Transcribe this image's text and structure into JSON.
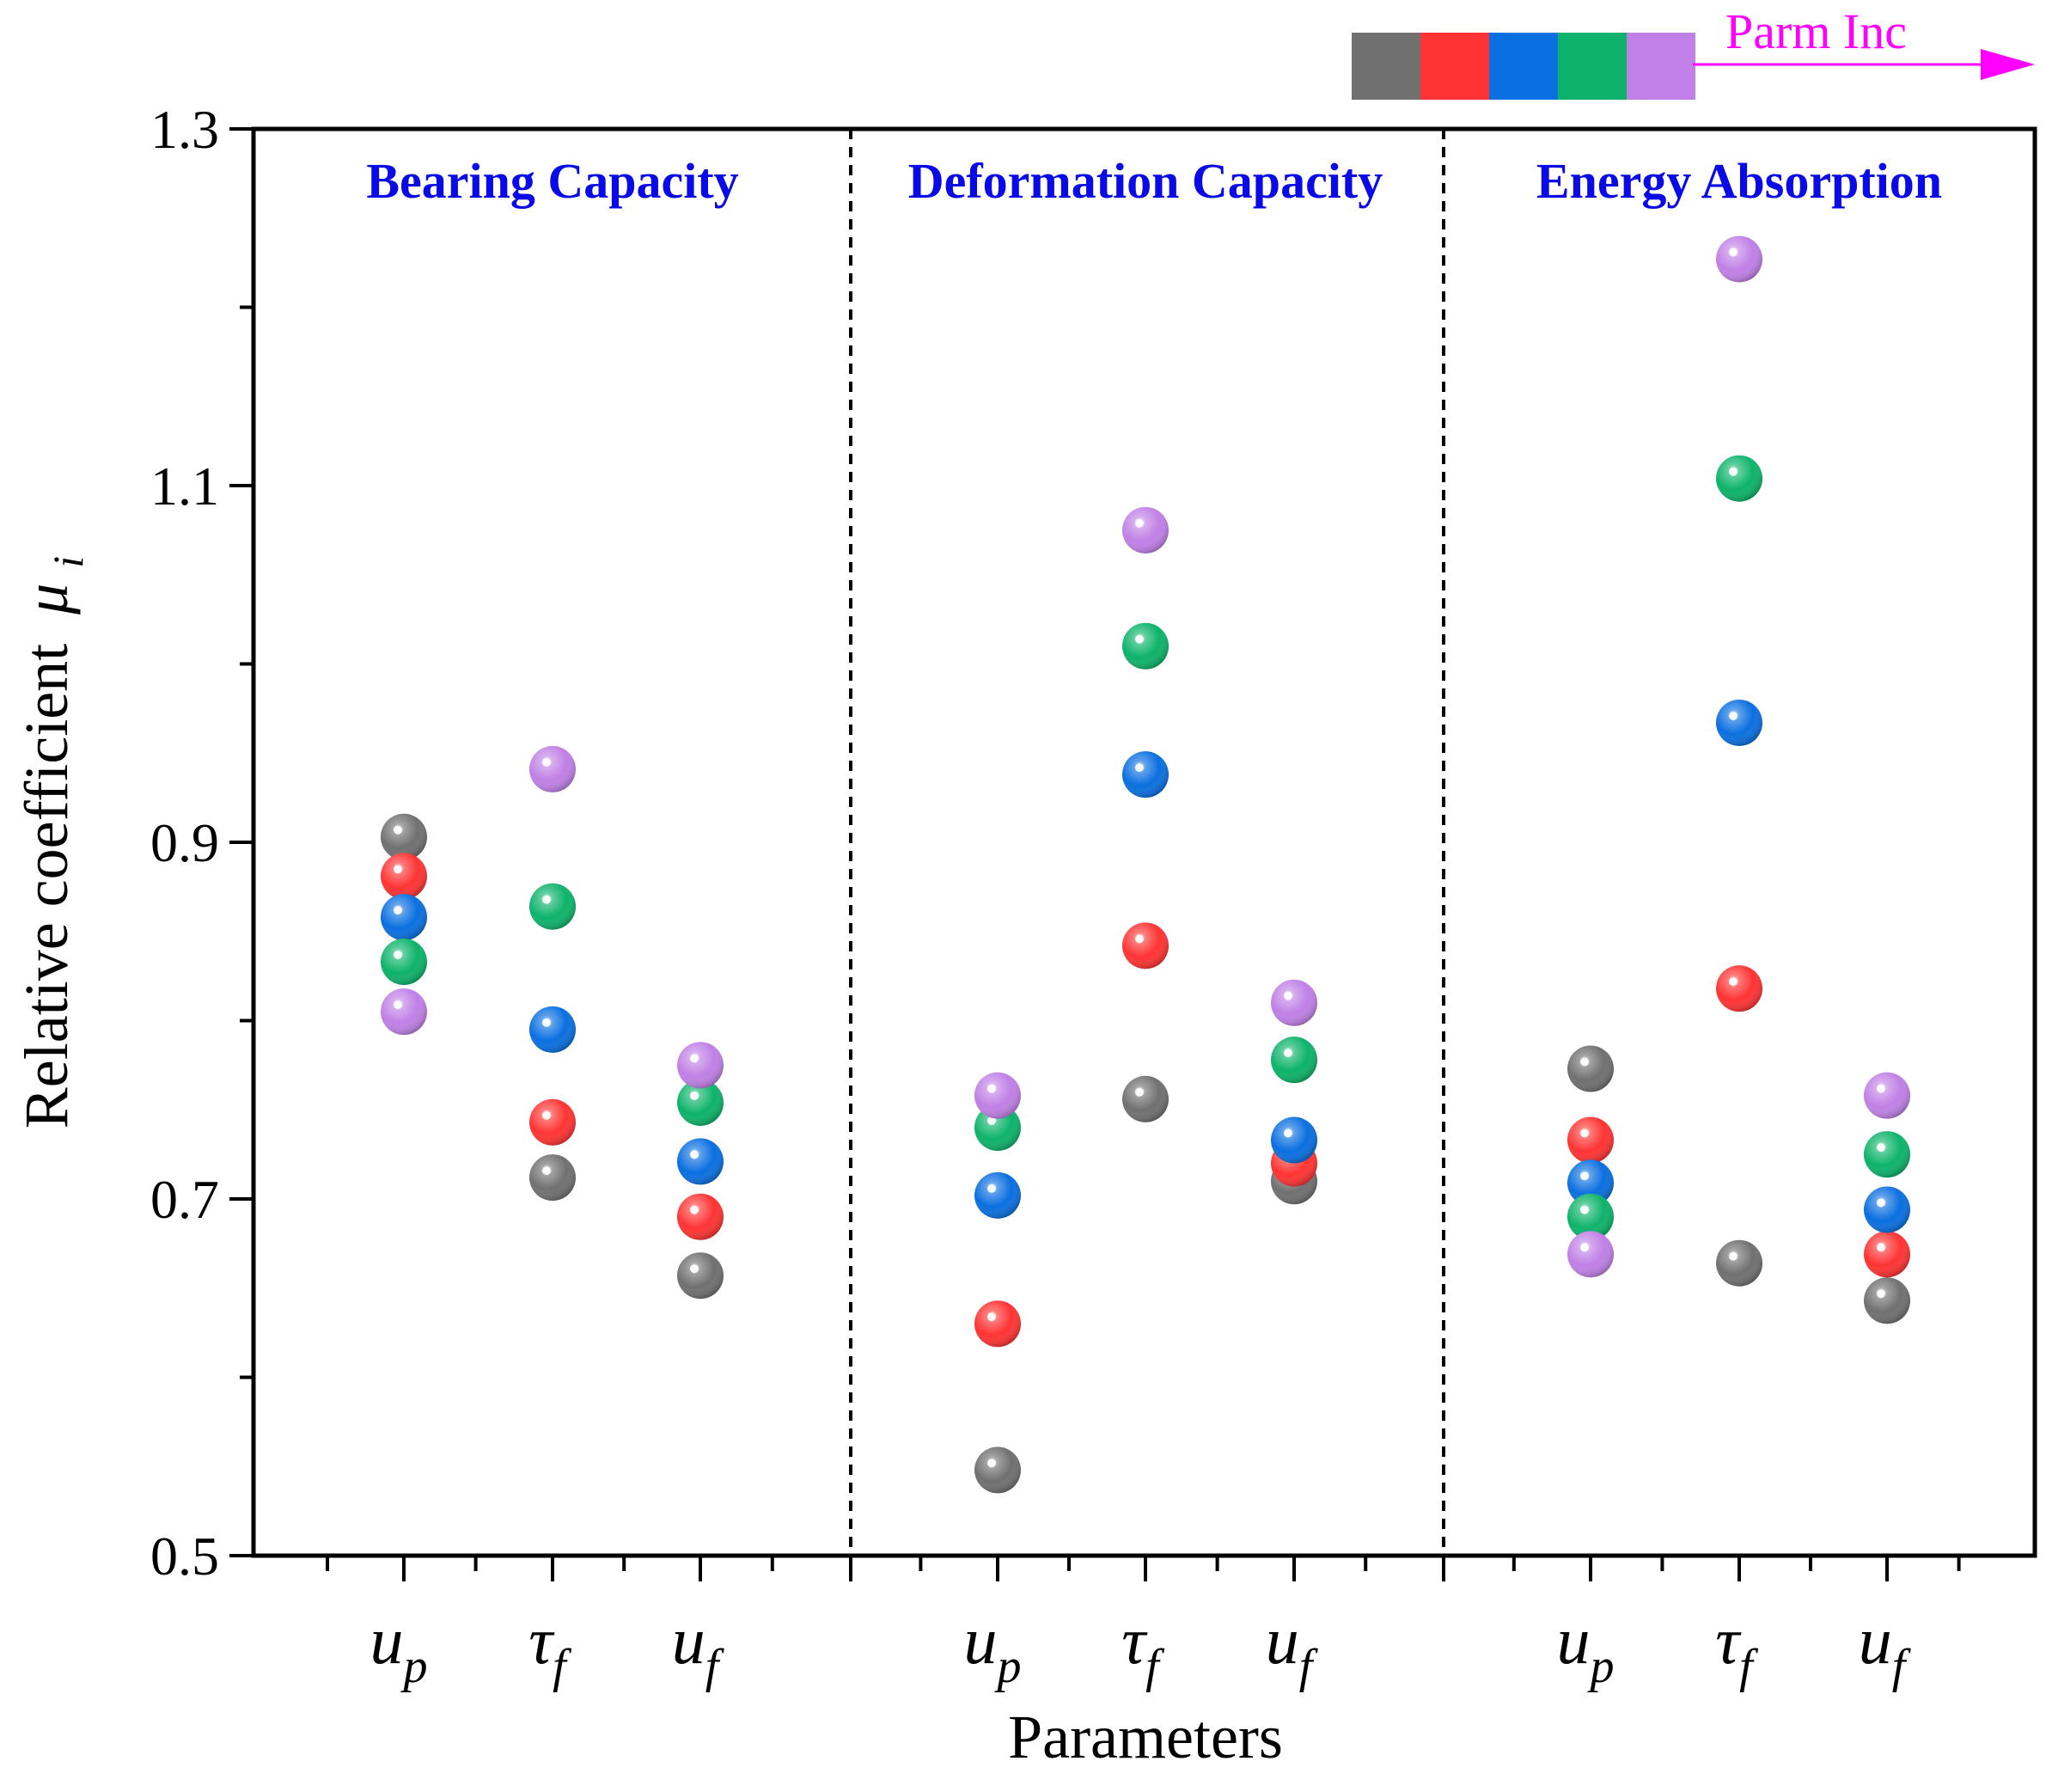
{
  "chart_data": {
    "type": "scatter",
    "xlabel": "Parameters",
    "ylabel_main": "Relative coefficient",
    "ylabel_symbol": "μ",
    "ylabel_sub": "i",
    "ylim": [
      0.5,
      1.3
    ],
    "yticks_major": [
      0.5,
      0.7,
      0.9,
      1.1,
      1.3
    ],
    "yticks_major_labels": [
      "0.5",
      "0.7",
      "0.9",
      "1.1",
      "1.3"
    ],
    "yticks_minor": [
      0.6,
      0.8,
      1.0,
      1.2
    ],
    "legend": {
      "label": "Parm Inc",
      "label_color": "#ff00ff",
      "colors": [
        "#707070",
        "#ff3333",
        "#0a6fe0",
        "#0db36a",
        "#c080e6"
      ],
      "placement": "top-right"
    },
    "panels": [
      {
        "title": "Bearing Capacity",
        "params": [
          {
            "main": "u",
            "sub": "p",
            "values": [
              0.903,
              0.881,
              0.858,
              0.833,
              0.805
            ]
          },
          {
            "main": "τ",
            "sub": "f",
            "values": [
              0.712,
              0.743,
              0.795,
              0.864,
              0.941
            ]
          },
          {
            "main": "u",
            "sub": "f",
            "values": [
              0.657,
              0.69,
              0.721,
              0.754,
              0.775
            ]
          }
        ]
      },
      {
        "title": "Deformation Capacity",
        "params": [
          {
            "main": "u",
            "sub": "p",
            "values": [
              0.548,
              0.63,
              0.702,
              0.74,
              0.758
            ]
          },
          {
            "main": "τ",
            "sub": "f",
            "values": [
              0.756,
              0.842,
              0.938,
              1.01,
              1.075
            ]
          },
          {
            "main": "u",
            "sub": "f",
            "values": [
              0.71,
              0.72,
              0.733,
              0.778,
              0.81
            ]
          }
        ]
      },
      {
        "title": "Energy Absorption",
        "params": [
          {
            "main": "u",
            "sub": "p",
            "values": [
              0.773,
              0.733,
              0.709,
              0.69,
              0.669
            ]
          },
          {
            "main": "τ",
            "sub": "f",
            "values": [
              0.664,
              0.818,
              0.967,
              1.104,
              1.227
            ]
          },
          {
            "main": "u",
            "sub": "f",
            "values": [
              0.643,
              0.669,
              0.694,
              0.725,
              0.758
            ]
          }
        ]
      }
    ]
  }
}
